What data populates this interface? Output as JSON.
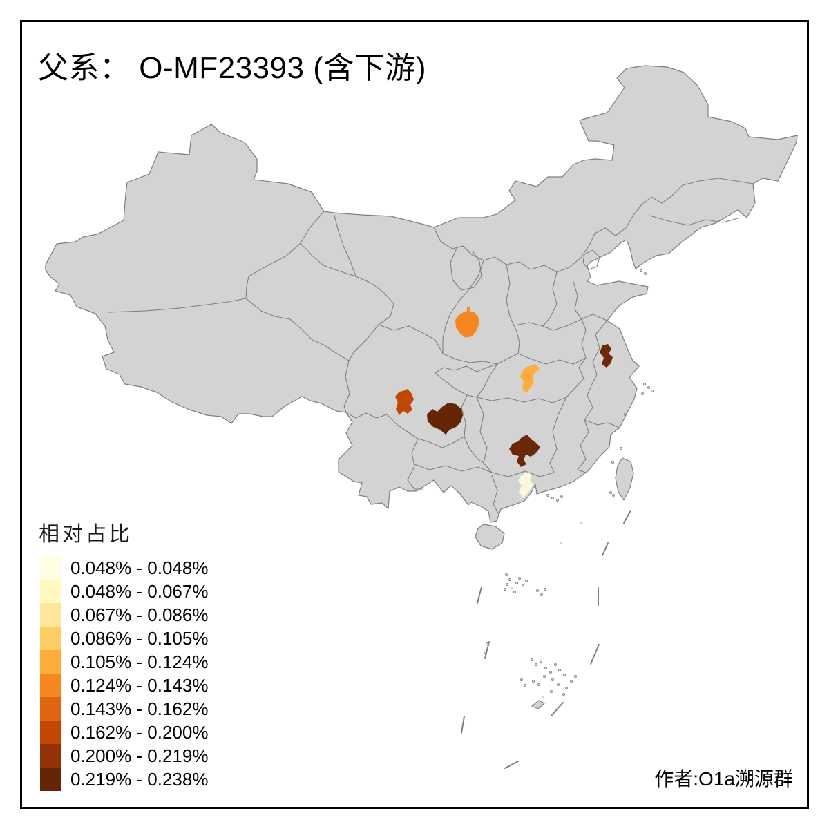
{
  "title": "父系： O-MF23393 (含下游)",
  "author": "作者:O1a溯源群",
  "legend": {
    "title": "相对占比",
    "classes": [
      {
        "range": "0.048% - 0.048%",
        "color": "#FFFEE3"
      },
      {
        "range": "0.048% - 0.067%",
        "color": "#FFF8C0"
      },
      {
        "range": "0.067% - 0.086%",
        "color": "#FEE79B"
      },
      {
        "range": "0.086% - 0.105%",
        "color": "#FECE65"
      },
      {
        "range": "0.105% - 0.124%",
        "color": "#FEAC3A"
      },
      {
        "range": "0.124% - 0.143%",
        "color": "#F68720"
      },
      {
        "range": "0.143% - 0.162%",
        "color": "#E1640E"
      },
      {
        "range": "0.162% - 0.200%",
        "color": "#C14702"
      },
      {
        "range": "0.200% - 0.219%",
        "color": "#933204"
      },
      {
        "range": "0.219% - 0.238%",
        "color": "#662506"
      }
    ]
  },
  "map": {
    "background": "#FFFFFF",
    "province_fill": "#D3D3D3",
    "boundary_color": "#7E7E7E",
    "highlighted_regions": [
      {
        "id": "shaanxi-guanzhong",
        "area_hint": "central Shaanxi",
        "color": "#F68720",
        "range": "0.124% - 0.143%"
      },
      {
        "id": "hubei-central",
        "area_hint": "central Hubei",
        "color": "#FEAC3A",
        "range": "0.105% - 0.124%"
      },
      {
        "id": "jiangsu-central",
        "area_hint": "central Jiangsu",
        "color": "#6E2907",
        "range": "0.200% - 0.219%"
      },
      {
        "id": "sichuan-south",
        "area_hint": "southern Sichuan",
        "color": "#C14702",
        "range": "0.162% - 0.200%"
      },
      {
        "id": "chuan-qian-border",
        "area_hint": "Sichuan–Guizhou border",
        "color": "#662506",
        "range": "0.219% - 0.238%"
      },
      {
        "id": "hunan-south",
        "area_hint": "southern Hunan",
        "color": "#6B2807",
        "range": "0.200% - 0.219%"
      },
      {
        "id": "guangdong-north",
        "area_hint": "northern Guangdong",
        "color": "#FAF8DC",
        "range": "0.048% - 0.048%"
      }
    ]
  }
}
